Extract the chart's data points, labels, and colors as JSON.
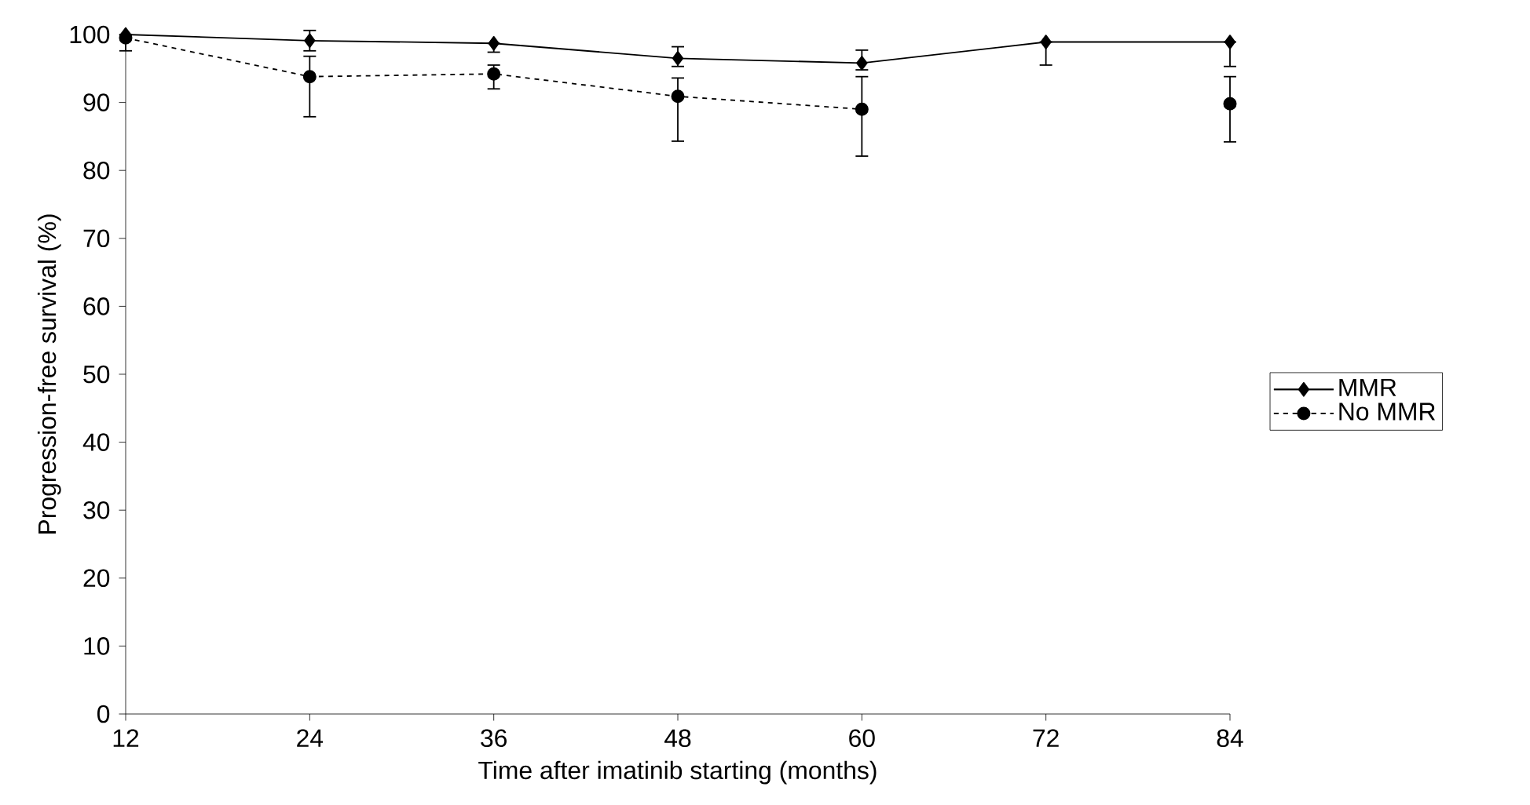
{
  "chart_data": {
    "type": "line",
    "xlabel": "Time after imatinib starting (months)",
    "ylabel": "Progression-free survival (%)",
    "x": [
      12,
      24,
      36,
      48,
      60,
      72,
      84
    ],
    "series": [
      {
        "name": "MMR",
        "color": "#000000",
        "marker": "diamond",
        "line_style": "solid",
        "values": [
          100,
          99.1,
          98.7,
          96.5,
          95.8,
          98.9,
          98.9
        ],
        "errors": [
          null,
          [
            97.6,
            100.6
          ],
          [
            97.4,
            98.7
          ],
          [
            95.3,
            98.2
          ],
          [
            94.8,
            97.7
          ],
          [
            95.5,
            98.9
          ],
          [
            95.3,
            98.9
          ]
        ]
      },
      {
        "name": "No MMR",
        "color": "#000000",
        "marker": "circle",
        "line_style": "dashed",
        "values": [
          99.5,
          93.8,
          94.2,
          90.9,
          89.0,
          null,
          89.8
        ],
        "errors": [
          [
            97.6,
            99.5
          ],
          [
            87.9,
            96.8
          ],
          [
            92.0,
            95.5
          ],
          [
            84.3,
            93.6
          ],
          [
            82.1,
            93.8
          ],
          null,
          [
            84.2,
            93.8
          ]
        ]
      }
    ],
    "xlim": [
      12,
      84
    ],
    "xticks": [
      12,
      24,
      36,
      48,
      60,
      72,
      84
    ],
    "ylim": [
      0,
      100
    ],
    "yticks": [
      0,
      10,
      20,
      30,
      40,
      50,
      60,
      70,
      80,
      90,
      100
    ],
    "grid": false,
    "legend": "right"
  }
}
